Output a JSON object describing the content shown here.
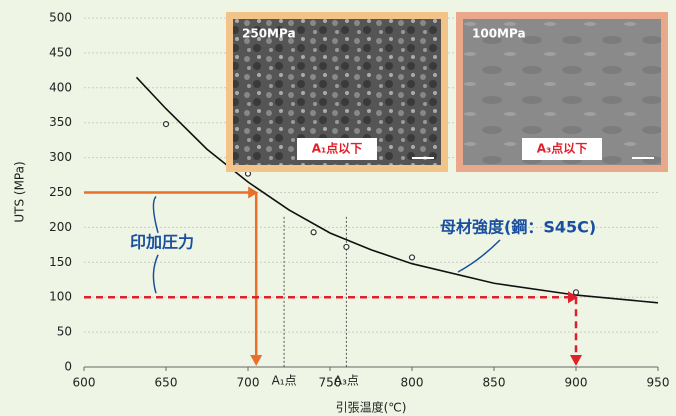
{
  "chart_data": {
    "type": "scatter",
    "y_label": "UTS (MPa)",
    "x_label": "引張温度(℃)",
    "xlim": [
      600,
      950
    ],
    "xticks": [
      600,
      650,
      700,
      750,
      800,
      850,
      900,
      950
    ],
    "ylim": [
      0,
      500
    ],
    "yticks": [
      0,
      50,
      100,
      150,
      200,
      250,
      300,
      350,
      400,
      450,
      500
    ],
    "grid": true,
    "series": [
      {
        "color": "#333333",
        "x": [
          650,
          700,
          740,
          760,
          800,
          900
        ],
        "values": [
          348,
          277,
          193,
          172,
          157,
          107
        ]
      }
    ],
    "curve": {
      "color": "#111111",
      "label": "母材強度(鋼：S45C)",
      "x": [
        632,
        650,
        675,
        700,
        725,
        750,
        775,
        800,
        850,
        900,
        950
      ],
      "values": [
        415,
        370,
        312,
        265,
        225,
        192,
        168,
        148,
        120,
        103,
        92
      ]
    },
    "hlines": [
      {
        "y": 250,
        "x_end": 705,
        "color": "#e8702a",
        "dashed": false
      },
      {
        "y": 100,
        "x_end": 900,
        "color": "#e0202a",
        "dashed": true
      }
    ],
    "hline_label": "印加圧力",
    "vlines": [
      {
        "x": 722,
        "label": "A₁点"
      },
      {
        "x": 760,
        "label": "A₃点"
      }
    ],
    "images": [
      {
        "stress": "250MPa",
        "tag": "A₁点以下"
      },
      {
        "stress": "100MPa",
        "tag": "A₃点以下"
      }
    ]
  }
}
